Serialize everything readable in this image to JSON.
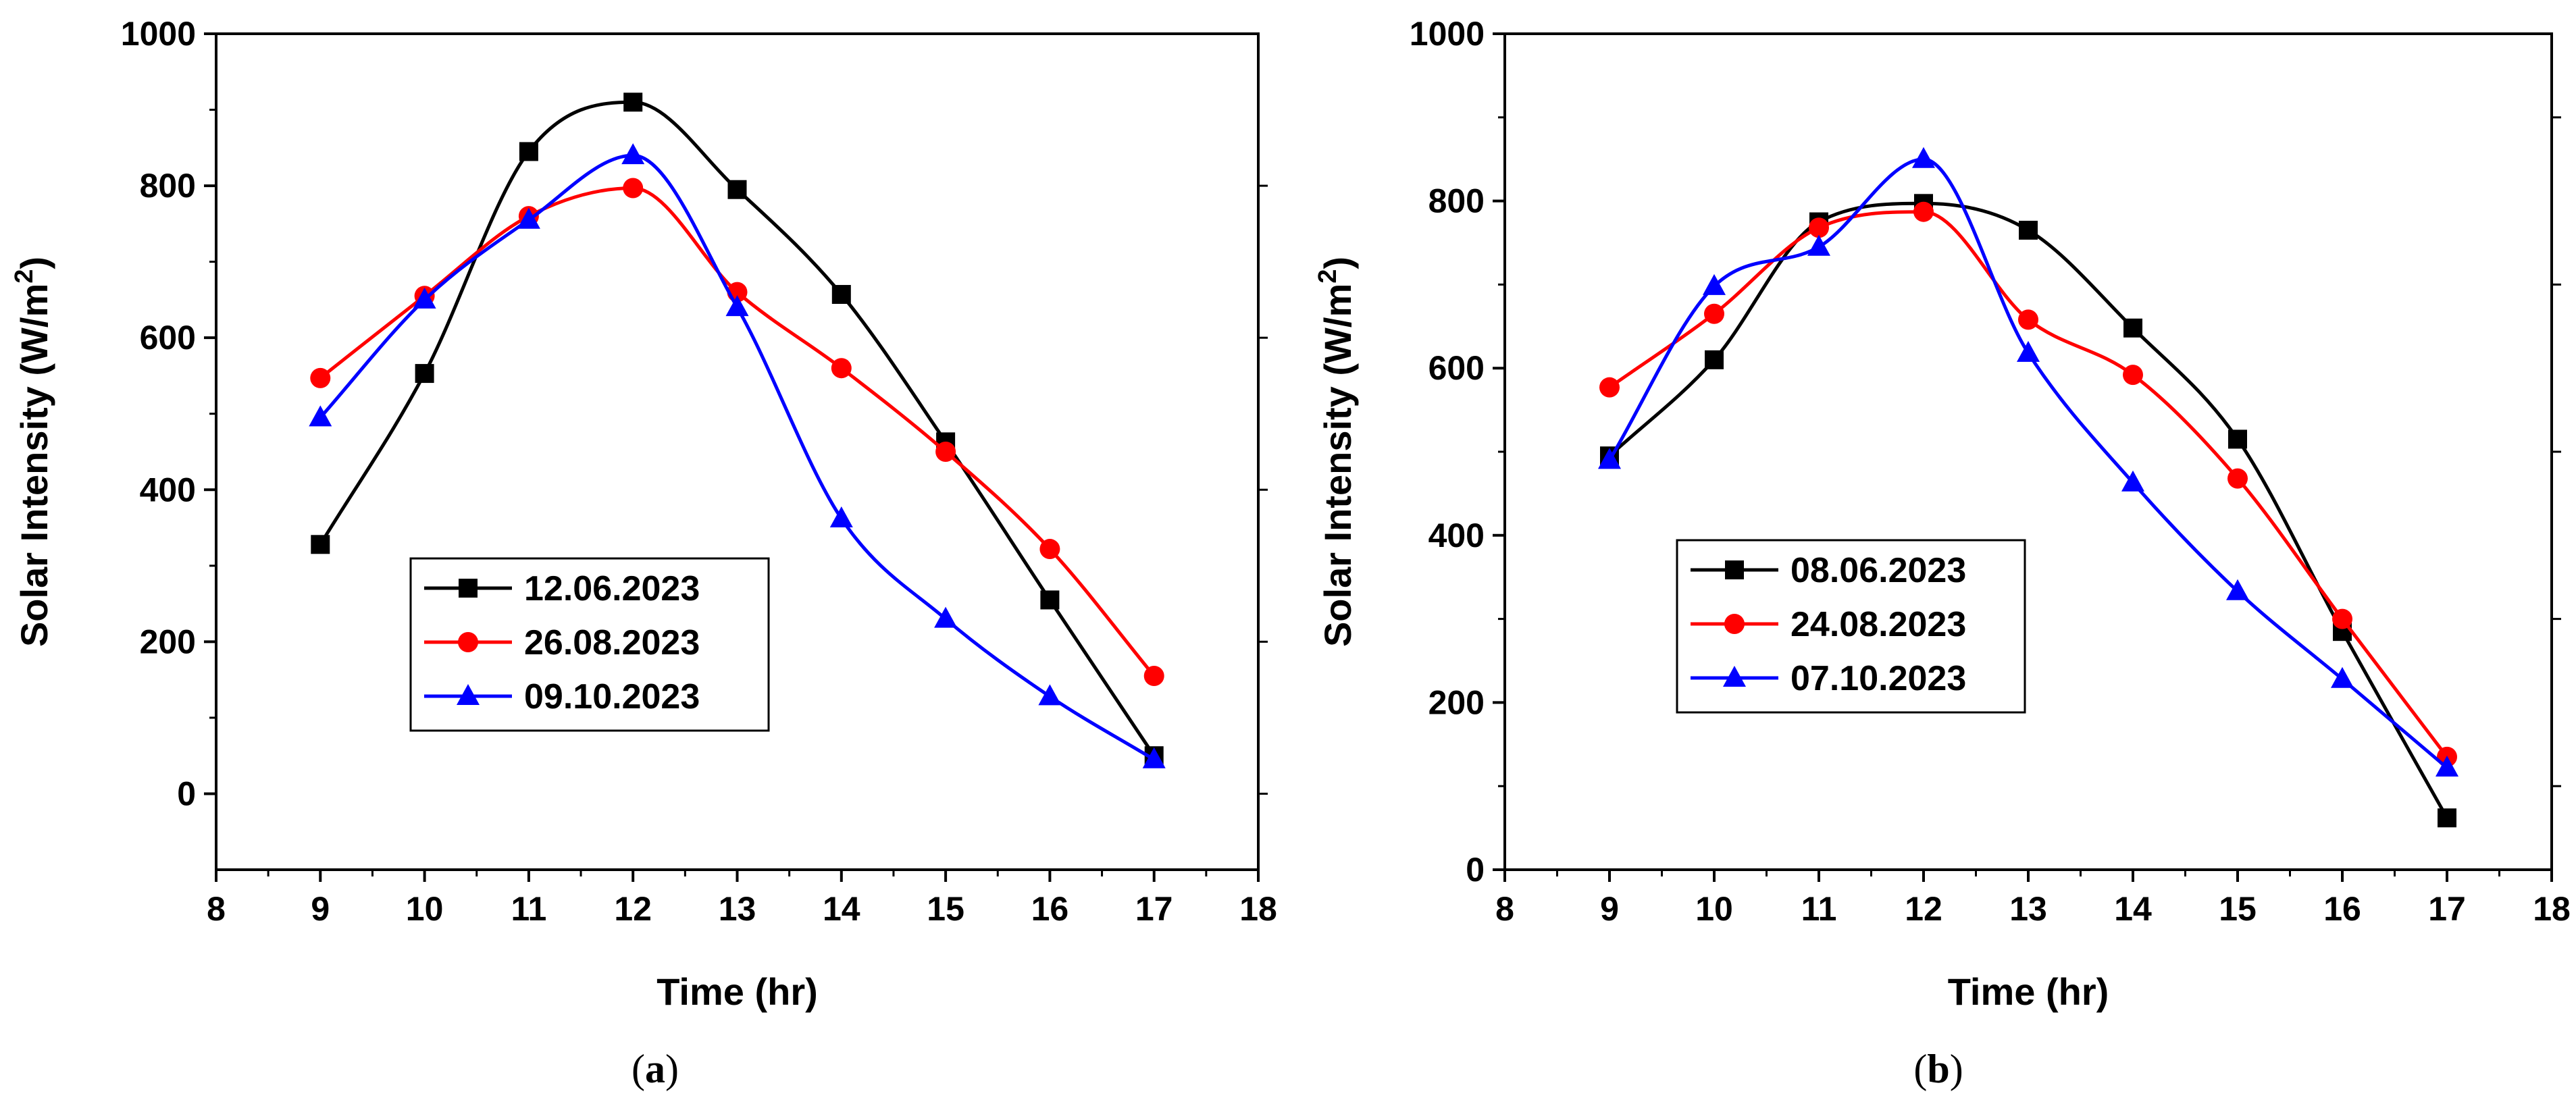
{
  "chart_data": [
    {
      "type": "line",
      "panel_label": "a",
      "xlabel": "Time (hr)",
      "ylabel": "Solar Intensity (W/m²)",
      "xlim": [
        8,
        18
      ],
      "ylim": [
        -100,
        1000
      ],
      "xticks": [
        8,
        9,
        10,
        11,
        12,
        13,
        14,
        15,
        16,
        17,
        18
      ],
      "yticks": [
        0,
        200,
        400,
        600,
        800,
        1000
      ],
      "x": [
        9,
        10,
        11,
        12,
        13,
        14,
        15,
        16,
        17
      ],
      "series": [
        {
          "name": "12.06.2023",
          "color": "#000000",
          "marker": "square",
          "values": [
            328,
            553,
            845,
            910,
            795,
            657,
            463,
            255,
            50
          ]
        },
        {
          "name": "26.08.2023",
          "color": "#ff0000",
          "marker": "circle",
          "values": [
            547,
            655,
            760,
            797,
            660,
            560,
            450,
            322,
            155
          ]
        },
        {
          "name": "09.10.2023",
          "color": "#0000ff",
          "marker": "triangle",
          "values": [
            495,
            650,
            755,
            840,
            640,
            362,
            230,
            128,
            45
          ]
        }
      ]
    },
    {
      "type": "line",
      "panel_label": "b",
      "xlabel": "Time (hr)",
      "ylabel": "Solar Intensity (W/m²)",
      "xlim": [
        8,
        18
      ],
      "ylim": [
        0,
        1000
      ],
      "xticks": [
        8,
        9,
        10,
        11,
        12,
        13,
        14,
        15,
        16,
        17,
        18
      ],
      "yticks": [
        0,
        200,
        400,
        600,
        800,
        1000
      ],
      "x": [
        9,
        10,
        11,
        12,
        13,
        14,
        15,
        16,
        17
      ],
      "series": [
        {
          "name": "08.06.2023",
          "color": "#000000",
          "marker": "square",
          "values": [
            495,
            610,
            775,
            797,
            765,
            648,
            515,
            285,
            62
          ]
        },
        {
          "name": "24.08.2023",
          "color": "#ff0000",
          "marker": "circle",
          "values": [
            577,
            665,
            768,
            787,
            658,
            592,
            468,
            300,
            135
          ]
        },
        {
          "name": "07.10.2023",
          "color": "#0000ff",
          "marker": "triangle",
          "values": [
            490,
            698,
            745,
            850,
            618,
            463,
            333,
            228,
            122
          ]
        }
      ]
    }
  ]
}
